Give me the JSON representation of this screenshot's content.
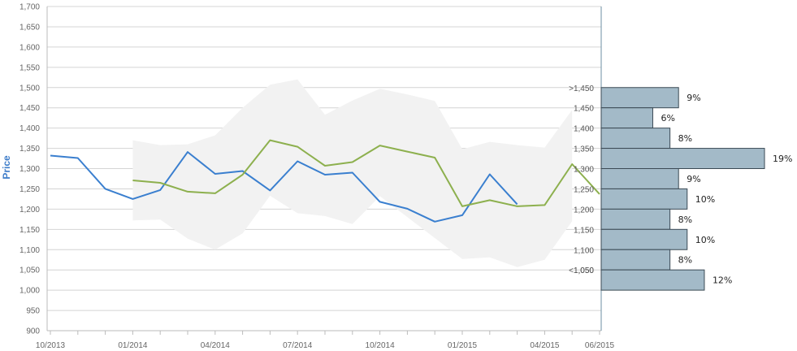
{
  "chart_data": {
    "type": "line",
    "ylabel": "Price",
    "ylim": [
      900,
      1700
    ],
    "ystep": 50,
    "grid": true,
    "x_ticks": [
      "10/2013",
      "01/2014",
      "04/2014",
      "07/2014",
      "10/2014",
      "01/2015",
      "04/2015",
      "06/2015"
    ],
    "x_months": [
      "2013-10",
      "2013-11",
      "2013-12",
      "2014-01",
      "2014-02",
      "2014-03",
      "2014-04",
      "2014-05",
      "2014-06",
      "2014-07",
      "2014-08",
      "2014-09",
      "2014-10",
      "2014-11",
      "2014-12",
      "2015-01",
      "2015-02",
      "2015-03",
      "2015-04",
      "2015-05",
      "2015-06"
    ],
    "series": [
      {
        "color": "#3a7fcf",
        "values": [
          1332,
          1326,
          1250,
          1225,
          1247,
          1341,
          1287,
          1294,
          1246,
          1318,
          1285,
          1290,
          1218,
          1201,
          1169,
          1185,
          1286,
          1212,
          null,
          null,
          null
        ]
      },
      {
        "color": "#8db04e",
        "values": [
          null,
          null,
          null,
          1271,
          1265,
          1243,
          1239,
          1285,
          1370,
          1354,
          1307,
          1316,
          1357,
          1342,
          1327,
          1207,
          1222,
          1207,
          1210,
          1311,
          1237
        ]
      }
    ],
    "band": {
      "color": "#f2f2f2",
      "upper": [
        null,
        null,
        null,
        1370,
        1358,
        1360,
        1382,
        1450,
        1507,
        1520,
        1433,
        1468,
        1497,
        1483,
        1467,
        1348,
        1366,
        1358,
        1352,
        1445,
        null
      ],
      "lower": [
        null,
        null,
        null,
        1172,
        1174,
        1127,
        1100,
        1140,
        1233,
        1190,
        1183,
        1163,
        1232,
        null,
        null,
        1077,
        1081,
        1057,
        1075,
        1170,
        null
      ]
    },
    "distribution": {
      "bar_color": "#a3bac8",
      "bins": [
        {
          "label": ">1,450",
          "value": 9,
          "text": "9%"
        },
        {
          "label": "1,450",
          "value": 6,
          "text": "6%"
        },
        {
          "label": "1,400",
          "value": 8,
          "text": "8%"
        },
        {
          "label": "1,350",
          "value": 19,
          "text": "19%"
        },
        {
          "label": "1,300",
          "value": 9,
          "text": "9%"
        },
        {
          "label": "1,250",
          "value": 10,
          "text": "10%"
        },
        {
          "label": "1,200",
          "value": 8,
          "text": "8%"
        },
        {
          "label": "1,150",
          "value": 10,
          "text": "10%"
        },
        {
          "label": "1,100",
          "value": 8,
          "text": "8%"
        },
        {
          "label": "1,050",
          "value": 12,
          "text": "12%"
        }
      ],
      "last_label": "<1,050"
    }
  }
}
